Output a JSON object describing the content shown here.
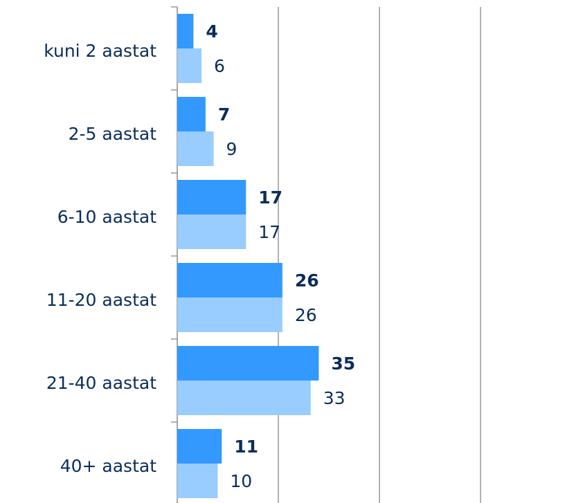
{
  "chart_data": {
    "type": "hbar",
    "categories": [
      "kuni 2 aastat",
      "2-5 aastat",
      "6-10 aastat",
      "11-20 aastat",
      "21-40 aastat",
      "40+ aastat"
    ],
    "series": [
      {
        "color": "#3399ff",
        "values": [
          4,
          7,
          17,
          26,
          35,
          11
        ]
      },
      {
        "color": "#99ccff",
        "values": [
          6,
          9,
          17,
          26,
          33,
          10
        ]
      }
    ],
    "xlim": [
      0,
      100
    ],
    "xticks": [
      0,
      25,
      50,
      75
    ],
    "grid": true
  }
}
